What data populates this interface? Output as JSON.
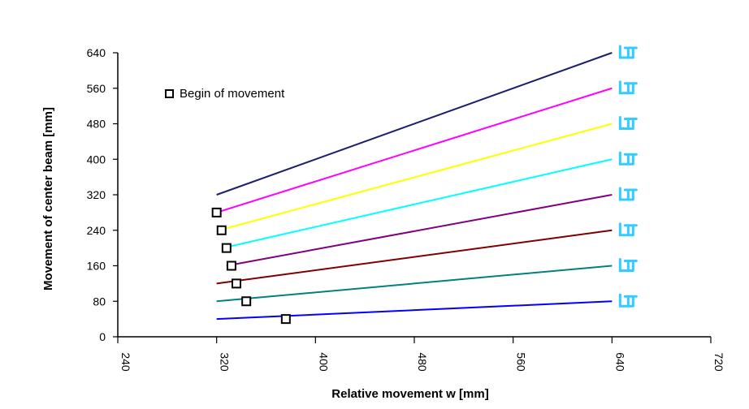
{
  "chart_data": {
    "type": "line",
    "xlabel": "Relative movement w [mm]",
    "ylabel": "Movement of center beam [mm]",
    "xlim": [
      240,
      720
    ],
    "ylim": [
      0,
      640
    ],
    "xticks": [
      240,
      320,
      400,
      480,
      560,
      640,
      720
    ],
    "yticks": [
      0,
      80,
      160,
      240,
      320,
      400,
      480,
      560,
      640
    ],
    "grid": false,
    "legend": {
      "label": "Begin of movement",
      "marker": "open-square",
      "position": "top-left"
    },
    "series": [
      {
        "color": "#1a1f6e",
        "points": [
          [
            320,
            320
          ],
          [
            640,
            640
          ]
        ]
      },
      {
        "color": "#ff00ff",
        "points": [
          [
            320,
            280
          ],
          [
            640,
            560
          ]
        ],
        "begin": [
          320,
          280
        ]
      },
      {
        "color": "#ffff00",
        "points": [
          [
            322,
            240
          ],
          [
            640,
            480
          ]
        ],
        "begin": [
          324,
          240
        ]
      },
      {
        "color": "#00ffff",
        "points": [
          [
            325,
            200
          ],
          [
            640,
            400
          ]
        ],
        "begin": [
          328,
          200
        ]
      },
      {
        "color": "#800080",
        "points": [
          [
            328,
            160
          ],
          [
            640,
            320
          ]
        ],
        "begin": [
          332,
          160
        ]
      },
      {
        "color": "#800000",
        "points": [
          [
            320,
            120
          ],
          [
            640,
            240
          ]
        ],
        "begin": [
          336,
          120
        ]
      },
      {
        "color": "#008080",
        "points": [
          [
            320,
            80
          ],
          [
            640,
            160
          ]
        ],
        "begin": [
          344,
          80
        ]
      },
      {
        "color": "#0000ff",
        "points": [
          [
            320,
            40
          ],
          [
            640,
            80
          ]
        ],
        "begin": [
          376,
          40
        ]
      }
    ],
    "end_symbol_color": "#33ccff"
  }
}
